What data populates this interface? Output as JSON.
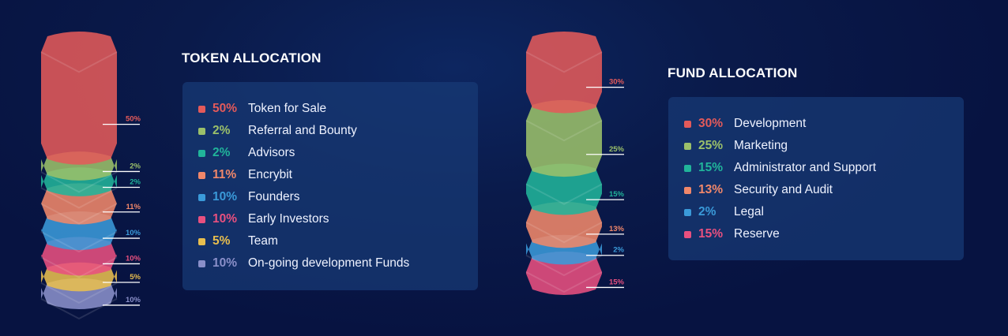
{
  "colors": {
    "red": "#e35a5a",
    "green": "#9bc06a",
    "teal": "#21b49a",
    "salmon": "#f0876a",
    "blue": "#3a9ad9",
    "pink": "#e8507f",
    "yellow": "#e8be4e",
    "lavender": "#8a8fc9"
  },
  "chart_data": [
    {
      "type": "stacked-column",
      "title": "TOKEN ALLOCATION",
      "items": [
        {
          "label": "50%",
          "name": "Token for Sale",
          "value": 50,
          "color": "#e35a5a"
        },
        {
          "label": "2%",
          "name": "Referral and Bounty",
          "value": 2,
          "color": "#9bc06a"
        },
        {
          "label": "2%",
          "name": "Advisors",
          "value": 2,
          "color": "#21b49a"
        },
        {
          "label": "11%",
          "name": "Encrybit",
          "value": 11,
          "color": "#f0876a"
        },
        {
          "label": "10%",
          "name": "Founders",
          "value": 10,
          "color": "#3a9ad9"
        },
        {
          "label": "10%",
          "name": "Early Investors",
          "value": 10,
          "color": "#e8507f"
        },
        {
          "label": "5%",
          "name": "Team",
          "value": 5,
          "color": "#e8be4e"
        },
        {
          "label": "10%",
          "name": "On-going development Funds",
          "value": 10,
          "color": "#8a8fc9"
        }
      ]
    },
    {
      "type": "stacked-column",
      "title": "FUND ALLOCATION",
      "items": [
        {
          "label": "30%",
          "name": "Development",
          "value": 30,
          "color": "#e35a5a"
        },
        {
          "label": "25%",
          "name": "Marketing",
          "value": 25,
          "color": "#9bc06a"
        },
        {
          "label": "15%",
          "name": "Administrator and Support",
          "value": 15,
          "color": "#21b49a"
        },
        {
          "label": "13%",
          "name": "Security and Audit",
          "value": 13,
          "color": "#f0876a"
        },
        {
          "label": "2%",
          "name": "Legal",
          "value": 2,
          "color": "#3a9ad9"
        },
        {
          "label": "15%",
          "name": "Reserve",
          "value": 15,
          "color": "#e8507f"
        }
      ]
    }
  ]
}
